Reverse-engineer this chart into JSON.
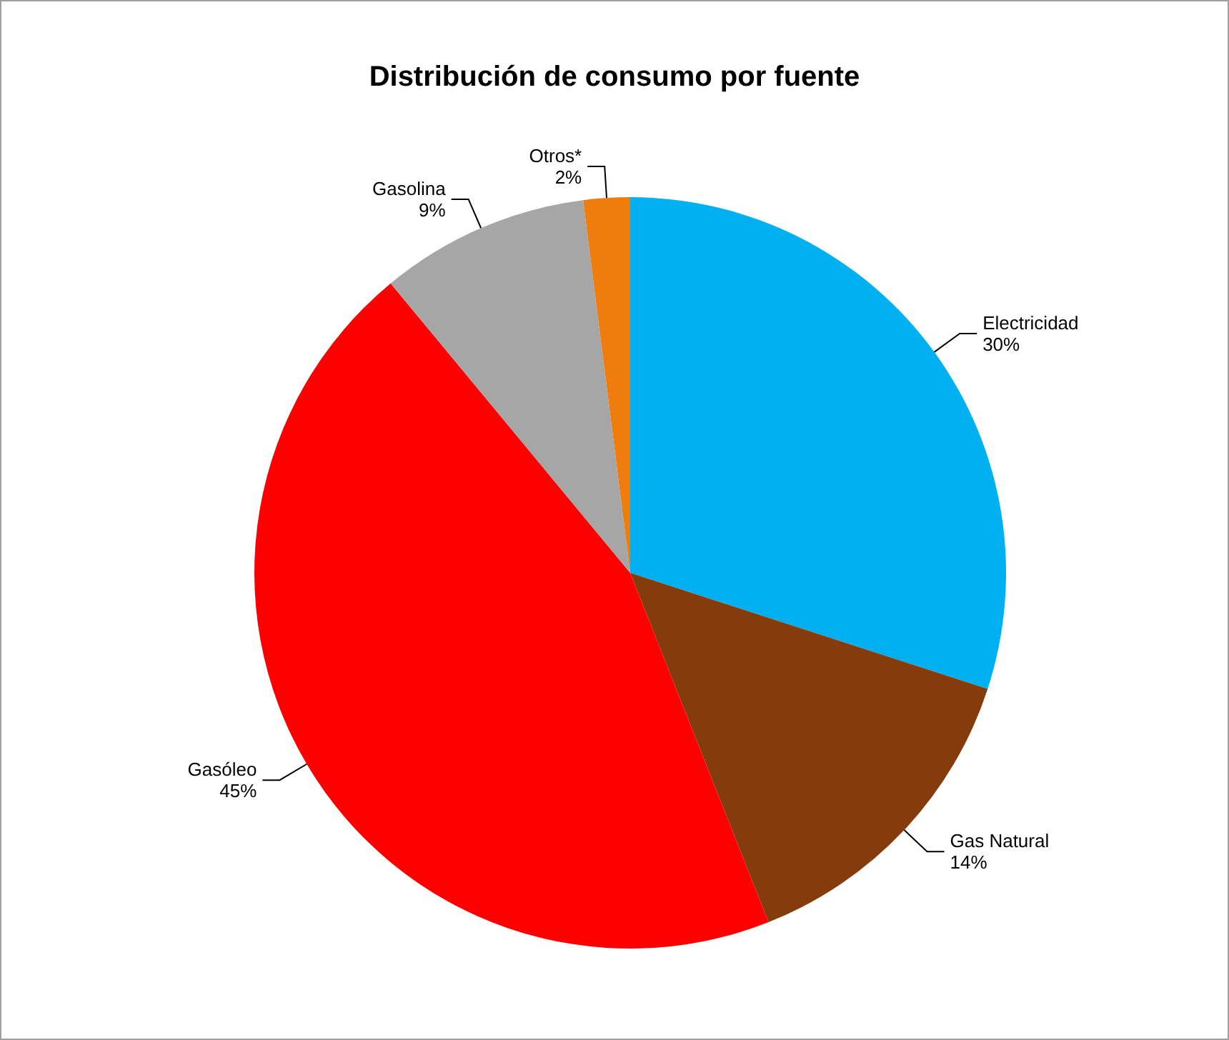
{
  "chart_data": {
    "type": "pie",
    "title": "Distribución de consumo por fuente",
    "categories": [
      "Electricidad",
      "Gas Natural",
      "Gasóleo",
      "Gasolina",
      "Otros*"
    ],
    "values": [
      30,
      14,
      45,
      9,
      2
    ],
    "colors": [
      "#00b0f0",
      "#843c0c",
      "#ff0000",
      "#a6a6a6",
      "#ee7d0e"
    ],
    "value_labels": [
      "30%",
      "14%",
      "45%",
      "9%",
      "2%"
    ],
    "legend": false
  }
}
